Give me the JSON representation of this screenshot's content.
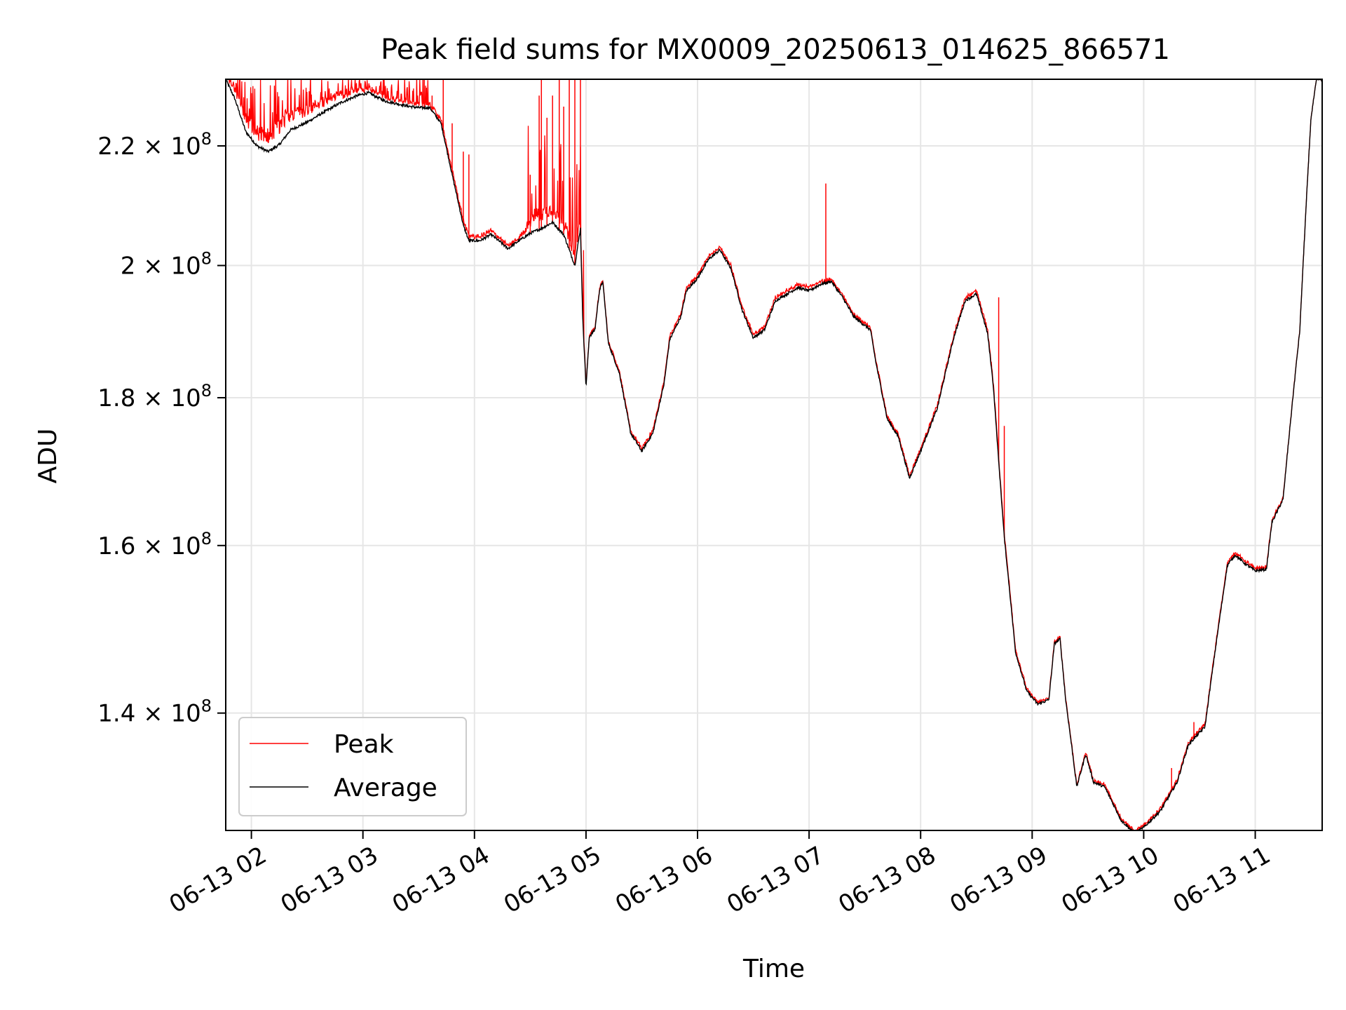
{
  "chart_data": {
    "type": "line",
    "title": "Peak field sums for MX0009_20250613_014625_866571",
    "xlabel": "Time",
    "ylabel": "ADU",
    "x_unit": "hour of 2025-06-13",
    "x_range": [
      1.77,
      11.6
    ],
    "y_range": [
      127500000,
      232000000
    ],
    "y_scale": "log",
    "grid": true,
    "legend_position": "lower-left",
    "x_ticks": [
      {
        "value": 2,
        "label": "06-13 02"
      },
      {
        "value": 3,
        "label": "06-13 03"
      },
      {
        "value": 4,
        "label": "06-13 04"
      },
      {
        "value": 5,
        "label": "06-13 05"
      },
      {
        "value": 6,
        "label": "06-13 06"
      },
      {
        "value": 7,
        "label": "06-13 07"
      },
      {
        "value": 8,
        "label": "06-13 08"
      },
      {
        "value": 9,
        "label": "06-13 09"
      },
      {
        "value": 10,
        "label": "06-13 10"
      },
      {
        "value": 11,
        "label": "06-13 11"
      }
    ],
    "y_ticks": [
      {
        "value": 140000000,
        "mantissa": "1.4",
        "exponent": "8"
      },
      {
        "value": 160000000,
        "mantissa": "1.6",
        "exponent": "8"
      },
      {
        "value": 180000000,
        "mantissa": "1.8",
        "exponent": "8"
      },
      {
        "value": 200000000,
        "mantissa": "2",
        "exponent": "8"
      },
      {
        "value": 220000000,
        "mantissa": "2.2",
        "exponent": "8"
      }
    ],
    "series": [
      {
        "name": "Peak",
        "color": "#ff0000"
      },
      {
        "name": "Average",
        "color": "#000000"
      }
    ],
    "average_points": [
      [
        1.77,
        232000000
      ],
      [
        1.85,
        228500000
      ],
      [
        1.95,
        222500000
      ],
      [
        2.05,
        220000000
      ],
      [
        2.15,
        219000000
      ],
      [
        2.25,
        220200000
      ],
      [
        2.35,
        222800000
      ],
      [
        2.5,
        224200000
      ],
      [
        2.65,
        226000000
      ],
      [
        2.8,
        227700000
      ],
      [
        2.95,
        229000000
      ],
      [
        3.05,
        229500000
      ],
      [
        3.2,
        228000000
      ],
      [
        3.4,
        227100000
      ],
      [
        3.5,
        226800000
      ],
      [
        3.6,
        226800000
      ],
      [
        3.7,
        224000000
      ],
      [
        3.8,
        215000000
      ],
      [
        3.9,
        206500000
      ],
      [
        3.95,
        204000000
      ],
      [
        4.05,
        204000000
      ],
      [
        4.15,
        205000000
      ],
      [
        4.25,
        203500000
      ],
      [
        4.3,
        202700000
      ],
      [
        4.4,
        204000000
      ],
      [
        4.5,
        205200000
      ],
      [
        4.6,
        206000000
      ],
      [
        4.7,
        207000000
      ],
      [
        4.8,
        205000000
      ],
      [
        4.9,
        200000000
      ],
      [
        4.95,
        206000000
      ],
      [
        4.97,
        192000000
      ],
      [
        5.0,
        181500000
      ],
      [
        5.03,
        189000000
      ],
      [
        5.08,
        190000000
      ],
      [
        5.12,
        196000000
      ],
      [
        5.15,
        197500000
      ],
      [
        5.2,
        188000000
      ],
      [
        5.3,
        183500000
      ],
      [
        5.4,
        175000000
      ],
      [
        5.5,
        172500000
      ],
      [
        5.6,
        175000000
      ],
      [
        5.7,
        182000000
      ],
      [
        5.75,
        188500000
      ],
      [
        5.85,
        192000000
      ],
      [
        5.9,
        196000000
      ],
      [
        6.0,
        198000000
      ],
      [
        6.1,
        201000000
      ],
      [
        6.2,
        202500000
      ],
      [
        6.3,
        199500000
      ],
      [
        6.4,
        193000000
      ],
      [
        6.5,
        188800000
      ],
      [
        6.6,
        190000000
      ],
      [
        6.7,
        194500000
      ],
      [
        6.8,
        195500000
      ],
      [
        6.9,
        196500000
      ],
      [
        7.0,
        196000000
      ],
      [
        7.1,
        197000000
      ],
      [
        7.2,
        197500000
      ],
      [
        7.3,
        195000000
      ],
      [
        7.4,
        192000000
      ],
      [
        7.55,
        190000000
      ],
      [
        7.6,
        185000000
      ],
      [
        7.7,
        177000000
      ],
      [
        7.8,
        174500000
      ],
      [
        7.9,
        168800000
      ],
      [
        8.0,
        172500000
      ],
      [
        8.15,
        178500000
      ],
      [
        8.3,
        189000000
      ],
      [
        8.4,
        194500000
      ],
      [
        8.5,
        195500000
      ],
      [
        8.6,
        189500000
      ],
      [
        8.65,
        182000000
      ],
      [
        8.7,
        171000000
      ],
      [
        8.75,
        161000000
      ],
      [
        8.85,
        147000000
      ],
      [
        8.95,
        142500000
      ],
      [
        9.05,
        141000000
      ],
      [
        9.15,
        141500000
      ],
      [
        9.2,
        148000000
      ],
      [
        9.25,
        148500000
      ],
      [
        9.3,
        141500000
      ],
      [
        9.4,
        132000000
      ],
      [
        9.48,
        135500000
      ],
      [
        9.55,
        132500000
      ],
      [
        9.65,
        132000000
      ],
      [
        9.8,
        128500000
      ],
      [
        9.92,
        127200000
      ],
      [
        10.0,
        127800000
      ],
      [
        10.15,
        129500000
      ],
      [
        10.3,
        132500000
      ],
      [
        10.4,
        136500000
      ],
      [
        10.55,
        138500000
      ],
      [
        10.65,
        148000000
      ],
      [
        10.75,
        157500000
      ],
      [
        10.82,
        158800000
      ],
      [
        10.9,
        157800000
      ],
      [
        11.0,
        156800000
      ],
      [
        11.1,
        157000000
      ],
      [
        11.15,
        163000000
      ],
      [
        11.25,
        166000000
      ],
      [
        11.4,
        190000000
      ],
      [
        11.5,
        225000000
      ],
      [
        11.55,
        232000000
      ],
      [
        11.6,
        232000000
      ]
    ],
    "peak_offsets": [
      [
        1.77,
        2500000
      ],
      [
        2.3,
        4500000
      ],
      [
        3.0,
        1200000
      ],
      [
        3.55,
        900000
      ],
      [
        3.85,
        1200000
      ],
      [
        4.4,
        600000
      ],
      [
        4.55,
        4000000
      ],
      [
        4.93,
        2500000
      ],
      [
        5.0,
        400000
      ],
      [
        6.0,
        700000
      ],
      [
        7.0,
        800000
      ],
      [
        7.2,
        500000
      ],
      [
        8.0,
        500000
      ],
      [
        8.7,
        800000
      ],
      [
        9.0,
        300000
      ],
      [
        10.0,
        300000
      ],
      [
        11.0,
        500000
      ],
      [
        11.6,
        0
      ]
    ],
    "peak_spikes": [
      [
        3.55,
        232000000
      ],
      [
        3.62,
        229000000
      ],
      [
        3.72,
        232000000
      ],
      [
        3.8,
        224000000
      ],
      [
        3.9,
        219000000
      ],
      [
        3.95,
        218500000
      ],
      [
        4.5,
        215000000
      ],
      [
        4.58,
        229000000
      ],
      [
        4.6,
        232000000
      ],
      [
        4.65,
        225000000
      ],
      [
        4.7,
        229000000
      ],
      [
        4.76,
        232000000
      ],
      [
        4.8,
        227000000
      ],
      [
        4.85,
        232000000
      ],
      [
        4.9,
        232000000
      ],
      [
        4.95,
        232000000
      ],
      [
        7.15,
        213500000
      ],
      [
        8.7,
        195000000
      ],
      [
        8.75,
        176000000
      ],
      [
        10.25,
        134000000
      ],
      [
        10.45,
        139000000
      ]
    ]
  },
  "legend": {
    "peak_label": "Peak",
    "average_label": "Average"
  }
}
